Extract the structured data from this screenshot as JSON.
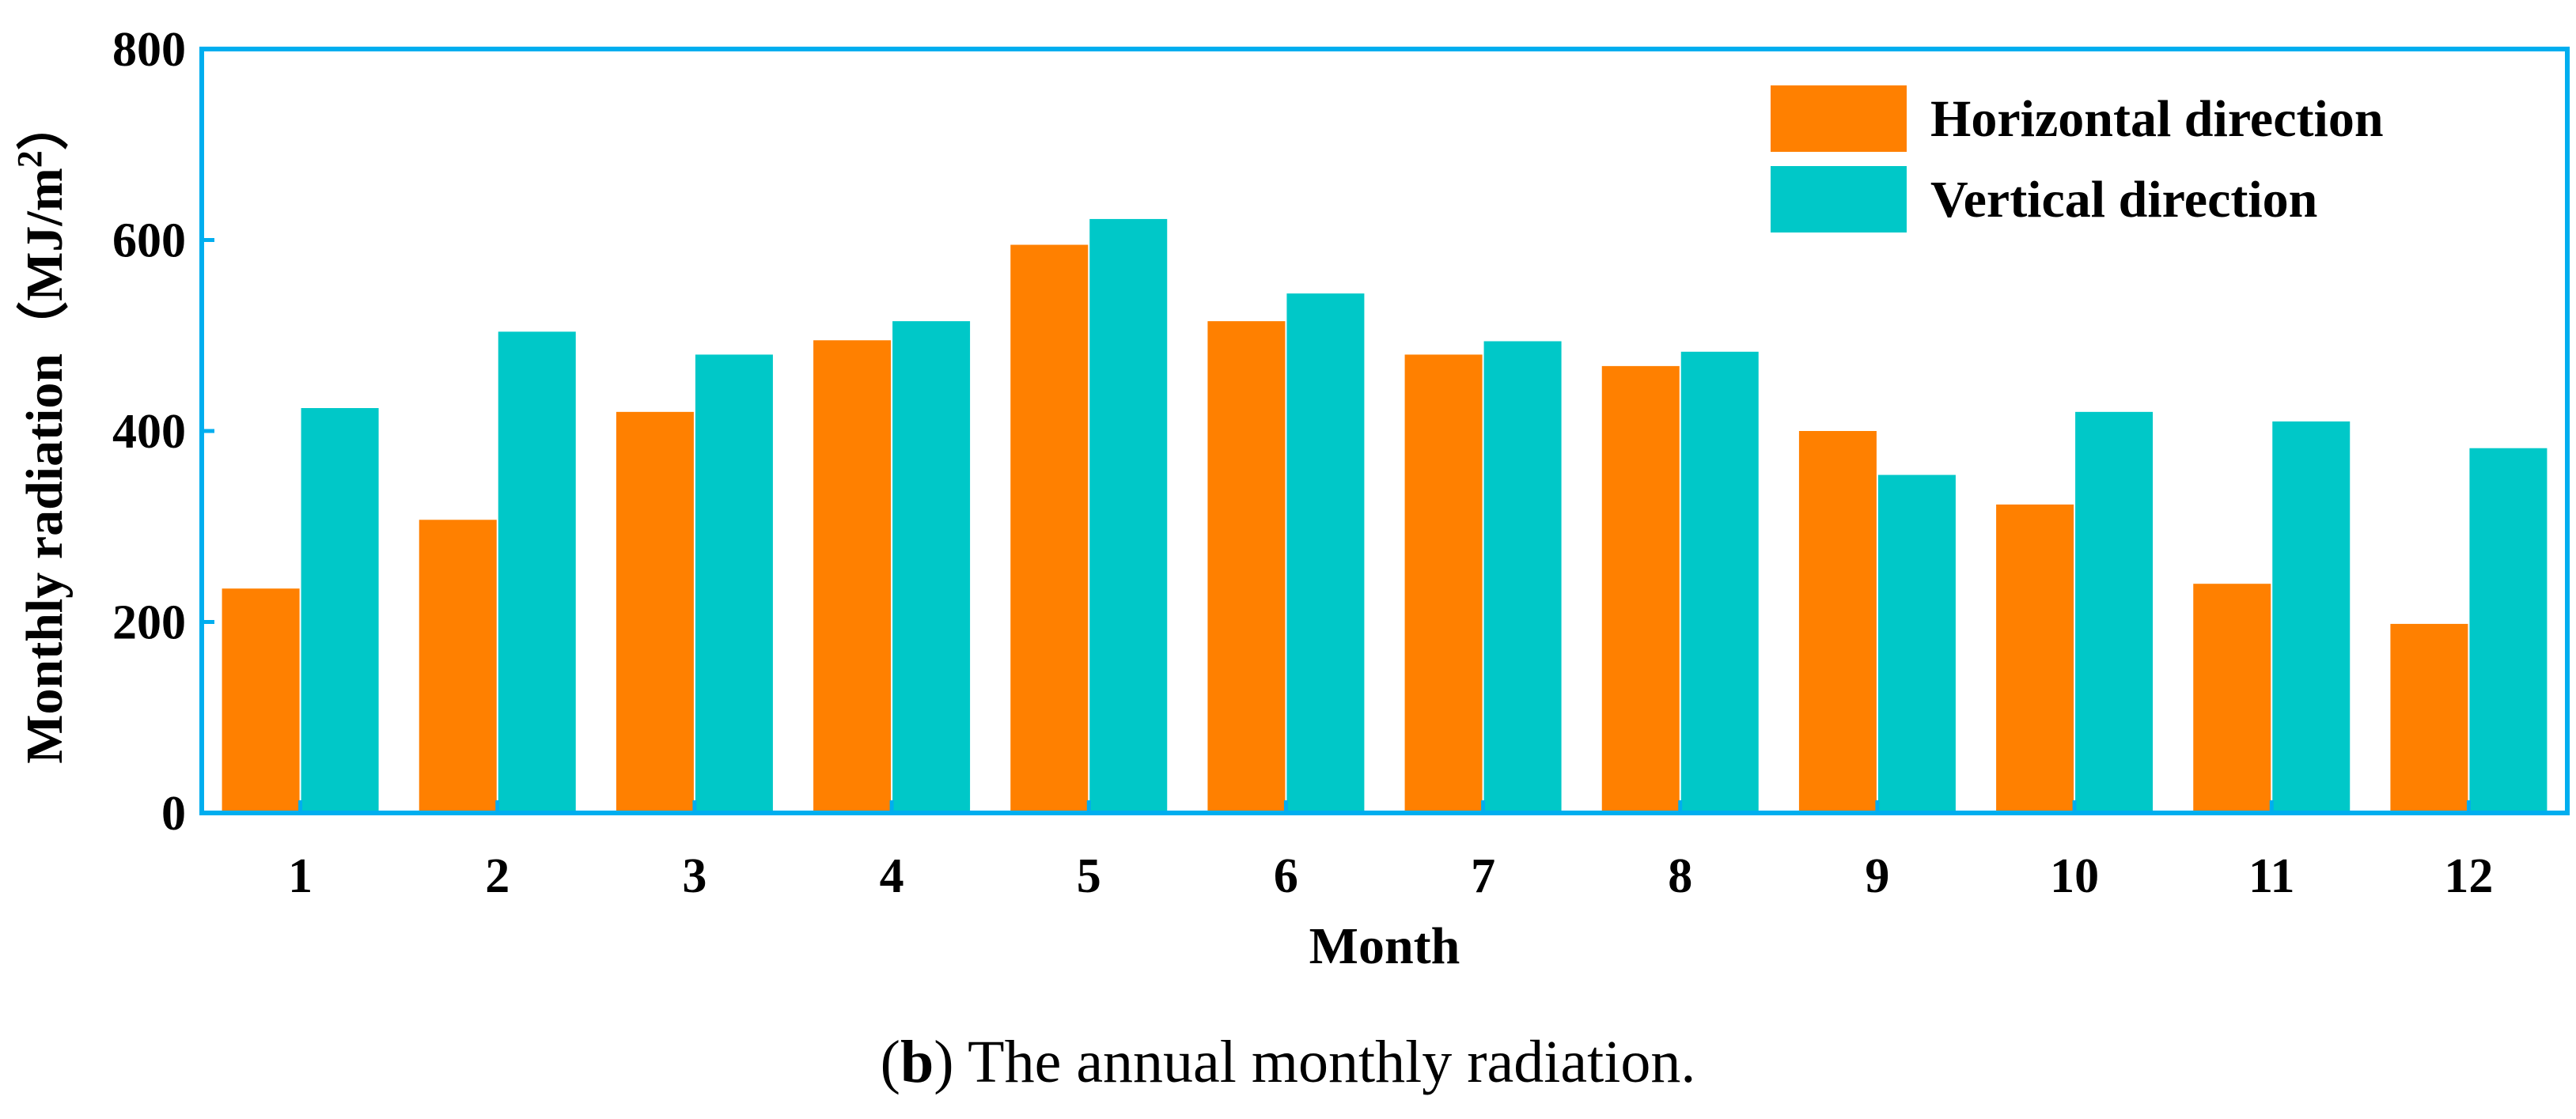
{
  "chart_data": {
    "type": "bar",
    "title": "",
    "xlabel": "Month",
    "ylabel": "Monthly radiation（MJ/m",
    "ylabel_sup": "2",
    "ylabel_close": "）",
    "ylim": [
      0,
      800
    ],
    "yticks": [
      0,
      200,
      400,
      600,
      800
    ],
    "categories": [
      "1",
      "2",
      "3",
      "4",
      "5",
      "6",
      "7",
      "8",
      "9",
      "10",
      "11",
      "12"
    ],
    "series": [
      {
        "name": "Horizontal direction",
        "color": "#FF8000",
        "values": [
          235,
          307,
          420,
          495,
          595,
          515,
          480,
          468,
          400,
          323,
          240,
          198
        ]
      },
      {
        "name": "Vertical direction",
        "color": "#00C8C8",
        "values": [
          424,
          504,
          480,
          515,
          622,
          544,
          494,
          483,
          354,
          420,
          410,
          382
        ]
      }
    ],
    "legend_position": "top-right",
    "frame_color": "#00AEEF"
  },
  "caption": {
    "label": "b",
    "open": "(",
    "close": ")",
    "text": " The annual monthly radiation."
  }
}
